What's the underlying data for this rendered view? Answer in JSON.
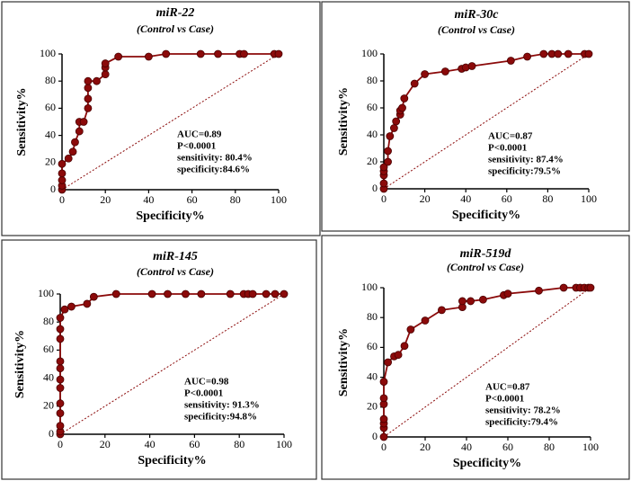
{
  "chart_data": [
    {
      "type": "line",
      "title": "miR-22",
      "subtitle": "(Control vs Case)",
      "x_label": "Specificity%",
      "y_label": "Sensitivity%",
      "annotations": [
        "AUC=0.89",
        "P<0.0001",
        "sensitivity: 80.4%",
        "specificity:84.6%"
      ],
      "xlim": [
        0,
        100
      ],
      "ylim": [
        0,
        100
      ],
      "xticks": [
        0,
        20,
        40,
        60,
        80,
        100
      ],
      "yticks": [
        0,
        20,
        40,
        60,
        80,
        100
      ],
      "color": "#8b0a0a",
      "diagonal": true,
      "x": [
        0,
        0,
        0,
        0,
        0,
        3,
        5,
        6,
        8,
        8,
        10,
        12,
        12,
        12,
        12,
        16,
        20,
        20,
        20,
        26,
        40,
        48,
        64,
        72,
        82,
        84,
        98,
        100
      ],
      "values": [
        0,
        3,
        7,
        12,
        19,
        23,
        28,
        35,
        43,
        50,
        50,
        60,
        67,
        75,
        80,
        80,
        85,
        90,
        93,
        98,
        98,
        100,
        100,
        100,
        100,
        100,
        100,
        100
      ]
    },
    {
      "type": "line",
      "title": "miR-30c",
      "subtitle": "(Control vs Case)",
      "x_label": "Specificity%",
      "y_label": "Sensitivity%",
      "annotations": [
        "AUC=0.87",
        "P<0.0001",
        "sensitivity: 87.4%",
        "specificity:79.5%"
      ],
      "xlim": [
        0,
        100
      ],
      "ylim": [
        0,
        100
      ],
      "xticks": [
        0,
        20,
        40,
        60,
        80,
        100
      ],
      "yticks": [
        0,
        20,
        40,
        60,
        80,
        100
      ],
      "color": "#8b0a0a",
      "diagonal": true,
      "x": [
        0,
        0,
        0,
        0,
        0,
        2,
        2,
        3,
        5,
        6,
        8,
        8,
        9,
        10,
        15,
        20,
        30,
        38,
        40,
        43,
        62,
        70,
        78,
        82,
        85,
        90,
        98,
        100
      ],
      "values": [
        0,
        4,
        10,
        13,
        16,
        20,
        28,
        39,
        45,
        50,
        55,
        58,
        60,
        67,
        78,
        85,
        87,
        89,
        90,
        91,
        95,
        98,
        100,
        100,
        100,
        100,
        100,
        100
      ]
    },
    {
      "type": "line",
      "title": "miR-145",
      "subtitle": "(Control vs Case)",
      "x_label": "Specificity%",
      "y_label": "Sensitivity%",
      "annotations": [
        "AUC=0.98",
        "P<0.0001",
        "sensitivity: 91.3%",
        "specificity:94.8%"
      ],
      "xlim": [
        0,
        100
      ],
      "ylim": [
        0,
        100
      ],
      "xticks": [
        0,
        20,
        40,
        60,
        80,
        100
      ],
      "yticks": [
        0,
        20,
        40,
        60,
        80,
        100
      ],
      "color": "#8b0a0a",
      "diagonal": true,
      "x": [
        0,
        0,
        0,
        0,
        0,
        0,
        0,
        0,
        0,
        0,
        0,
        0,
        2,
        5,
        12,
        15,
        25,
        41,
        48,
        56,
        63,
        76,
        82,
        84,
        86,
        92,
        96,
        100
      ],
      "values": [
        0,
        2,
        6,
        15,
        22,
        33,
        39,
        47,
        52,
        68,
        75,
        83,
        89,
        91,
        93,
        98,
        100,
        100,
        100,
        100,
        100,
        100,
        100,
        100,
        100,
        100,
        100,
        100
      ]
    },
    {
      "type": "line",
      "title": "miR-519d",
      "subtitle": "(Control vs Case)",
      "x_label": "Specificity%",
      "y_label": "Sensitivity%",
      "annotations": [
        "AUC=0.87",
        "P<0.0001",
        "sensitivity: 78.2%",
        "specificity:79.4%"
      ],
      "xlim": [
        0,
        100
      ],
      "ylim": [
        0,
        100
      ],
      "xticks": [
        0,
        20,
        40,
        60,
        80,
        100
      ],
      "yticks": [
        0,
        20,
        40,
        60,
        80,
        100
      ],
      "color": "#8b0a0a",
      "diagonal": true,
      "x": [
        0,
        0,
        0,
        0,
        0,
        0,
        0,
        2,
        5,
        7,
        10,
        13,
        20,
        28,
        38,
        38,
        42,
        48,
        58,
        60,
        75,
        87,
        93,
        95,
        97,
        99,
        100
      ],
      "values": [
        0,
        6,
        9,
        12,
        22,
        26,
        37,
        50,
        54,
        55,
        61,
        72,
        78,
        85,
        87,
        91,
        91,
        92,
        95,
        96,
        98,
        100,
        100,
        100,
        100,
        100,
        100
      ]
    }
  ]
}
